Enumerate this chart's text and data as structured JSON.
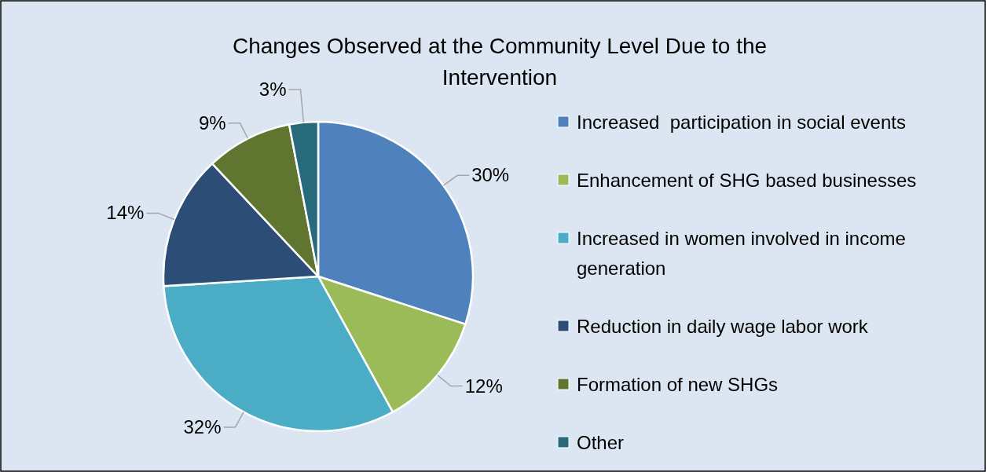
{
  "chart_data": {
    "type": "pie",
    "title": "Changes Observed at the Community Level Due to the Intervention",
    "categories": [
      "Increased  participation in social events",
      "Enhancement of SHG based businesses",
      "Increased in women involved in income generation",
      "Reduction in daily wage labor work",
      "Formation of new SHGs",
      "Other"
    ],
    "values": [
      30,
      12,
      32,
      14,
      9,
      3
    ],
    "colors": [
      "#4f81bd",
      "#9bbb59",
      "#4bacc6",
      "#2c4d75",
      "#5f7530",
      "#276a7c"
    ],
    "value_labels": [
      "30%",
      "12%",
      "32%",
      "14%",
      "9%",
      "3%"
    ],
    "legend": "right"
  }
}
